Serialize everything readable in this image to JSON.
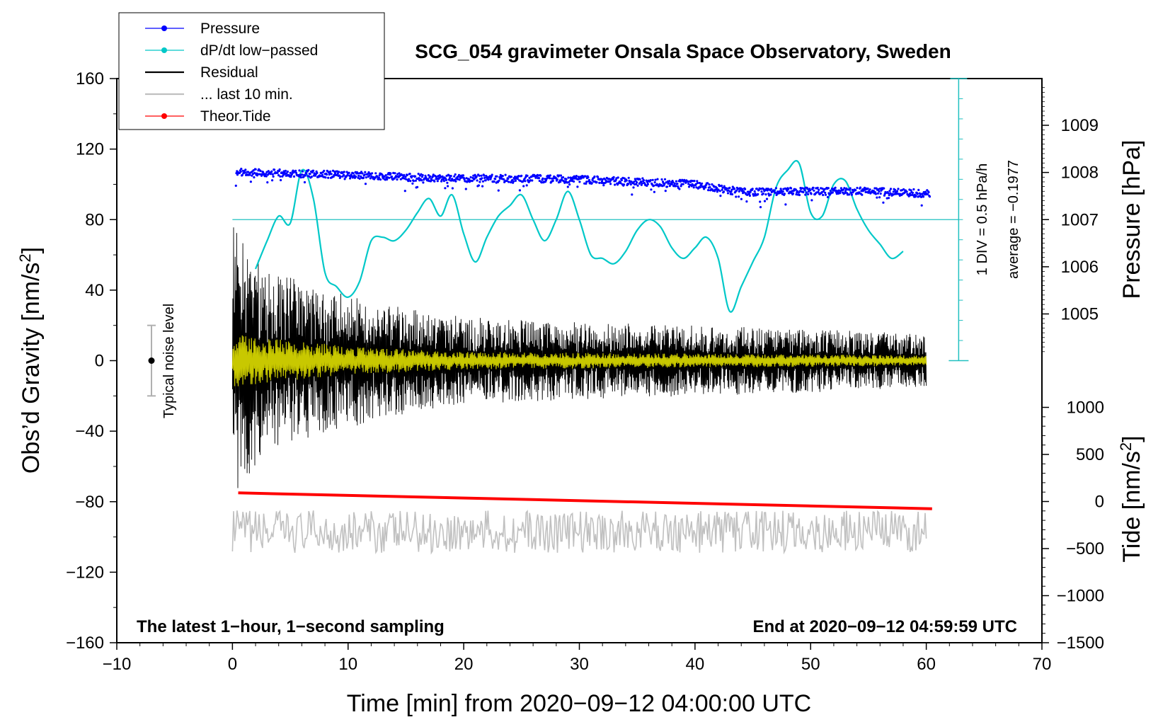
{
  "chart_data": {
    "type": "line",
    "title": "SCG_054 gravimeter Onsala Space Observatory, Sweden",
    "xlabel": "Time [min] from 2020−09−12 04:00:00 UTC",
    "ylabel_left": "Obs’d Gravity [nm/s",
    "ylabel_left_sup": "2",
    "ylabel_left_close": "]",
    "ylabel_right_top": "Pressure [hPa]",
    "ylabel_right_bottom": "Tide [nm/s",
    "ylabel_right_bottom_sup": "2",
    "ylabel_right_bottom_close": "]",
    "xlim": [
      -10,
      70
    ],
    "ylim": [
      -160,
      160
    ],
    "x_ticks": [
      -10,
      0,
      10,
      20,
      30,
      40,
      50,
      60,
      70
    ],
    "x_tick_labels": [
      "−10",
      "0",
      "10",
      "20",
      "30",
      "40",
      "50",
      "60",
      "70"
    ],
    "y_ticks": [
      160,
      120,
      80,
      40,
      0,
      -40,
      -80,
      -120,
      -160
    ],
    "y_tick_labels": [
      "160",
      "120",
      "80",
      "40",
      "0",
      "−40",
      "−80",
      "−120",
      "−160"
    ],
    "pressure_axis": {
      "ticks": [
        1005,
        1006,
        1007,
        1008,
        1009
      ],
      "tick_labels": [
        "1005",
        "1006",
        "1007",
        "1008",
        "1009"
      ],
      "calib": {
        "p1": 1009,
        "g1": 133.5,
        "p2": 1005,
        "g2": 26.5
      }
    },
    "tide_axis": {
      "ticks": [
        1000,
        500,
        0,
        -500,
        -1000,
        -1500
      ],
      "tick_labels": [
        "1000",
        "500",
        "0",
        "−500",
        "−1000",
        "−1500"
      ],
      "calib": {
        "t1": 1000,
        "g1": -26.5,
        "t2": -1500,
        "g2": -160
      }
    },
    "legend": [
      {
        "label": "Pressure",
        "color": "#0000ff",
        "marker": "dot"
      },
      {
        "label": "dP/dt low−passed",
        "color": "#00c8c8",
        "marker": "dot"
      },
      {
        "label": "Residual",
        "color": "#000000",
        "marker": "none"
      },
      {
        "label": "... last 10 min.",
        "color": "#c0c0c0",
        "marker": "none"
      },
      {
        "label": "Theor.Tide",
        "color": "#ff0000",
        "marker": "dot"
      }
    ],
    "notes": {
      "bottom_left": "The latest 1−hour, 1−second sampling",
      "bottom_right": "End at 2020−09−12 04:59:59 UTC",
      "noise_label": "Typical noise level",
      "div_label": "1 DIV = 0.5 hPa/h",
      "average_label": "average = −0.1977"
    },
    "noise_bar": {
      "x": -7,
      "center": 0,
      "low": -20,
      "high": 20
    },
    "dpdt_scale": {
      "x": 62.8,
      "top": 160,
      "bottom": 0,
      "zero_level": 80,
      "zero_x_start": 0,
      "zero_x_end": 62.8
    },
    "series": [
      {
        "name": "Pressure",
        "color": "#0000ff",
        "units": "hPa",
        "x": [
          0.3,
          5,
          10,
          15,
          20,
          25,
          30,
          35,
          40,
          43,
          45,
          50,
          55,
          60.3
        ],
        "values": [
          1008.0,
          1007.98,
          1007.95,
          1007.9,
          1007.88,
          1007.87,
          1007.85,
          1007.8,
          1007.75,
          1007.62,
          1007.58,
          1007.6,
          1007.6,
          1007.55
        ],
        "jitter": 0.08
      },
      {
        "name": "dP/dt low−passed",
        "color": "#00c8c8",
        "units": "axis",
        "x": [
          2,
          3,
          4,
          5,
          6,
          7,
          8,
          9,
          10,
          11,
          12,
          13,
          14,
          15,
          16,
          17,
          18,
          19,
          20,
          21,
          22,
          23,
          24,
          25,
          26,
          27,
          28,
          29,
          30,
          31,
          32,
          33,
          34,
          35,
          36,
          37,
          38,
          39,
          40,
          41,
          42,
          43,
          44,
          45,
          46,
          47,
          48,
          49,
          50,
          51,
          52,
          53,
          54,
          55,
          56,
          57,
          58
        ],
        "values": [
          52,
          68,
          82,
          78,
          108,
          92,
          50,
          42,
          36,
          45,
          68,
          70,
          68,
          74,
          84,
          92,
          82,
          94,
          72,
          56,
          70,
          82,
          88,
          94,
          80,
          68,
          80,
          96,
          80,
          60,
          58,
          55,
          62,
          74,
          80,
          76,
          64,
          58,
          64,
          70,
          58,
          28,
          42,
          56,
          70,
          98,
          108,
          112,
          84,
          82,
          100,
          102,
          86,
          74,
          66,
          58,
          62
        ],
        "extra_points": [
          [
            1.9,
            50
          ],
          [
            57.3,
            64
          ],
          [
            58,
            62
          ]
        ]
      },
      {
        "name": "Residual",
        "color": "#000000",
        "units": "axis",
        "x_start": 0,
        "x_end": 60,
        "envelope": [
          [
            0,
            78
          ],
          [
            3,
            52
          ],
          [
            6,
            45
          ],
          [
            10,
            38
          ],
          [
            15,
            30
          ],
          [
            20,
            25
          ],
          [
            30,
            22
          ],
          [
            40,
            20
          ],
          [
            50,
            18
          ],
          [
            60,
            15
          ]
        ]
      },
      {
        "name": "Residual (smoothed)",
        "color": "#c8c800",
        "units": "axis",
        "x_start": 0,
        "x_end": 60,
        "envelope": [
          [
            0,
            15
          ],
          [
            5,
            12
          ],
          [
            10,
            8
          ],
          [
            20,
            5
          ],
          [
            40,
            4
          ],
          [
            60,
            3
          ]
        ]
      },
      {
        "name": "... last 10 min.",
        "color": "#c0c0c0",
        "units": "axis",
        "x_start": 0,
        "x_end": 60,
        "center": -97,
        "amplitude": 12
      },
      {
        "name": "Theor.Tide",
        "color": "#ff0000",
        "units": "axis",
        "x": [
          0.5,
          60.5
        ],
        "values": [
          -75,
          -84
        ]
      }
    ]
  }
}
